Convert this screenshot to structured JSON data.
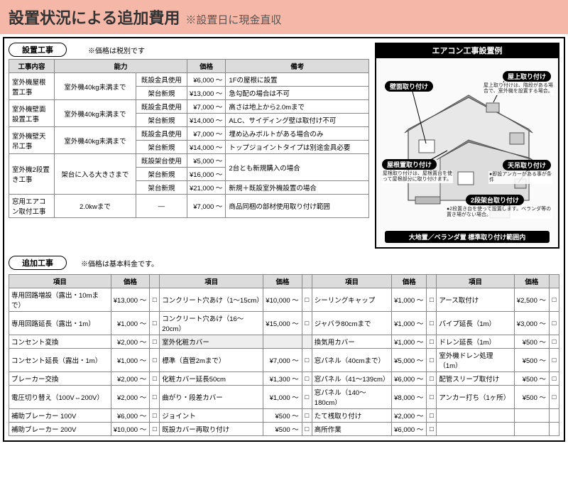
{
  "header": {
    "title": "設置状況による追加費用",
    "sub": "※設置日に現金直収"
  },
  "install": {
    "pill": "設置工事",
    "note": "※価格は税別です",
    "cols": [
      "工事内容",
      "能力",
      "",
      "価格",
      "備考"
    ],
    "rows": [
      {
        "name": "室外機屋根置工事",
        "cap": "室外機40kg未満まで",
        "sub": [
          [
            "既設金具使用",
            "¥6,000 ～",
            "1Fの屋根に設置"
          ],
          [
            "架台新規",
            "¥13,000 ～",
            "急勾配の場合は不可"
          ]
        ]
      },
      {
        "name": "室外機壁面設置工事",
        "cap": "室外機40kg未満まで",
        "sub": [
          [
            "既設金具使用",
            "¥7,000 ～",
            "高さは地上から2.0mまで"
          ],
          [
            "架台新規",
            "¥14,000 ～",
            "ALC、サイディング壁は取付け不可"
          ]
        ]
      },
      {
        "name": "室外機壁天吊工事",
        "cap": "室外機40kg未満まで",
        "sub": [
          [
            "既設金具使用",
            "¥7,000 ～",
            "埋め込みボルトがある場合のみ"
          ],
          [
            "架台新規",
            "¥14,000 ～",
            "トップジョイントタイプは別途金具必要"
          ]
        ]
      },
      {
        "name": "室外機2段置き工事",
        "cap": "架台に入る大きさまで",
        "sub": [
          [
            "既設架台使用",
            "¥5,000 ～",
            "2台とも新規購入の場合"
          ],
          [
            "架台新規",
            "¥16,000 ～",
            ""
          ],
          [
            "架台新規",
            "¥21,000 ～",
            "新規＋既設室外機設置の場合"
          ]
        ]
      },
      {
        "name": "窓用エアコン取付工事",
        "cap": "2.0kwまで",
        "sub": [
          [
            "—",
            "¥7,000 ～",
            "商品同梱の部材使用取り付け範囲"
          ]
        ]
      }
    ]
  },
  "example": {
    "header": "エアコン工事設置例",
    "labels": {
      "wall": "壁面取り付け",
      "rooftop": "屋上取り付け",
      "rooftop_txt": "屋上取り付けは、階段がある場合で、室外機を設置する場合。",
      "roof": "屋根置取り付け",
      "roof_txt": "屋根取り付けは、屋根置台を使って屋根部分に取り付けます。",
      "ceiling": "天吊取り付け",
      "ceiling_txt": "●即設アンカーがある事が条件",
      "twostage": "2段架台取り付け",
      "twostage_txt": "●2段置き台を使って設置します。ベランダ等の置き場がない場合。",
      "ground": "大地置／ベランダ置 標準取り付け範囲内"
    }
  },
  "extra": {
    "pill": "追加工事",
    "note": "※価格は基本料金です。",
    "col_hdr": [
      "項目",
      "価格"
    ],
    "cols": [
      [
        [
          "専用回路増設（露出・10mまで）",
          "¥13,000 ～"
        ],
        [
          "専用回路延長（露出・1m）",
          "¥1,000 ～"
        ],
        [
          "コンセント変換",
          "¥2,000 ～"
        ],
        [
          "コンセント延長（露出・1m）",
          "¥1,000 ～"
        ],
        [
          "ブレーカー交換",
          "¥2,000 ～"
        ],
        [
          "電圧切り替え（100V⇔200V）",
          "¥2,000 ～"
        ],
        [
          "補助ブレーカー 100V",
          "¥6,000 ～"
        ],
        [
          "補助ブレーカー 200V",
          "¥10,000 ～"
        ]
      ],
      [
        [
          "コンクリート穴あけ（1～15cm）",
          "¥10,000 ～"
        ],
        [
          "コンクリート穴あけ（16～20cm）",
          "¥15,000 ～"
        ],
        [
          "室外化粧カバー",
          "",
          true
        ],
        [
          "標準（直管2mまで）",
          "¥7,000 ～"
        ],
        [
          "化粧カバー延長50cm",
          "¥1,300 ～"
        ],
        [
          "曲がり・段差カバー",
          "¥1,000 ～"
        ],
        [
          "ジョイント",
          "¥500 ～"
        ],
        [
          "既設カバー再取り付け",
          "¥500 ～"
        ]
      ],
      [
        [
          "シーリングキャップ",
          "¥1,000 ～"
        ],
        [
          "ジャバラ80cmまで",
          "¥1,000 ～"
        ],
        [
          "換気用カバー",
          "¥1,000 ～"
        ],
        [
          "窓パネル（40cmまで）",
          "¥5,000 ～"
        ],
        [
          "窓パネル（41～139cm）",
          "¥6,000 ～"
        ],
        [
          "窓パネル（140～180cm）",
          "¥8,000 ～"
        ],
        [
          "たて桟取り付け",
          "¥2,000 ～"
        ],
        [
          "高所作業",
          "¥6,000 ～"
        ]
      ],
      [
        [
          "アース取付け",
          "¥2,500 ～"
        ],
        [
          "パイプ延長（1m）",
          "¥3,000 ～"
        ],
        [
          "ドレン延長（1m）",
          "¥500 ～"
        ],
        [
          "室外機ドレン処理（1m）",
          "¥500 ～"
        ],
        [
          "配管スリーブ取付け",
          "¥500 ～"
        ],
        [
          "アンカー打ち（1ヶ所）",
          "¥500 ～"
        ]
      ]
    ]
  },
  "style": {
    "banner_bg": "#f5b8a8",
    "th_bg": "#dcdcdc",
    "border": "#888"
  }
}
